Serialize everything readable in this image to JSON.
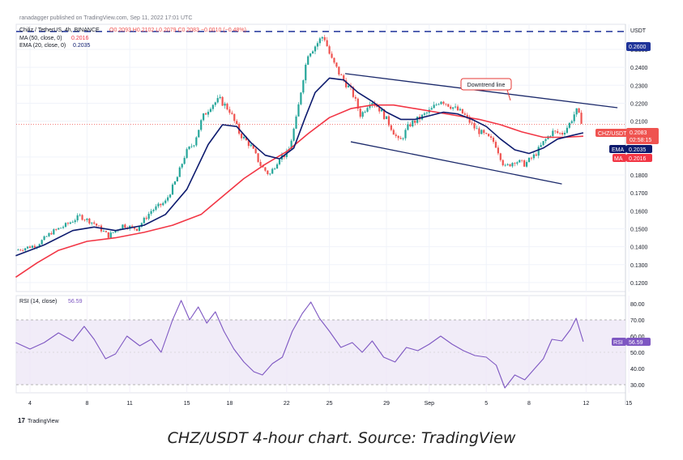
{
  "header": {
    "published": "ranadagger published on TradingView.com, Sep 11, 2022 17:01 UTC",
    "symbol_line": "Chiliz / TetherUS, 4h, BINANCE",
    "ohlc": "O0.2093 H0.2102 L0.2079 C0.2083 −0.0010 (−0.48%)",
    "ma_line_label": "MA (50, close, 0)",
    "ma_line_value": "0.2016",
    "ema_line_label": "EMA (20, close, 0)",
    "ema_line_value": "0.2035",
    "rsi_line_label": "RSI (14, close)",
    "rsi_line_value": "56.59"
  },
  "colors": {
    "up": "#26a69a",
    "down": "#ef5350",
    "ma": "#f23645",
    "ema": "#0d1b6e",
    "trend": "#1c2a6b",
    "rsi": "#7e57c2",
    "rsi_band": "#ede7f6"
  },
  "annotation": "Downtrend line",
  "badges": {
    "currency": "USDT",
    "resistance": "0.2600",
    "price_symbol": "CHZ/USDT",
    "price": "0.2083",
    "countdown": "02:58:15",
    "ema_tag": "EMA",
    "ema_value": "0.2035",
    "ma_tag": "MA",
    "ma_value": "0.2016",
    "rsi_tag": "RSI",
    "rsi_value": "56.59"
  },
  "logo_text": "TradingView",
  "caption": "CHZ/USDT 4-hour chart. Source: TradingView",
  "chart_data": {
    "type": "candlestick",
    "x_ticks": [
      {
        "label": "4",
        "day": 4
      },
      {
        "label": "8",
        "day": 8
      },
      {
        "label": "11",
        "day": 11
      },
      {
        "label": "15",
        "day": 15
      },
      {
        "label": "18",
        "day": 18
      },
      {
        "label": "22",
        "day": 22
      },
      {
        "label": "25",
        "day": 25
      },
      {
        "label": "29",
        "day": 29
      },
      {
        "label": "Sep",
        "day": 32
      },
      {
        "label": "5",
        "day": 36
      },
      {
        "label": "8",
        "day": 39
      },
      {
        "label": "12",
        "day": 43
      },
      {
        "label": "15",
        "day": 46
      }
    ],
    "price_ticks": [
      "0.2500",
      "0.2400",
      "0.2300",
      "0.2200",
      "0.2100",
      "0.1900",
      "0.1800",
      "0.1700",
      "0.1600",
      "0.1500",
      "0.1400",
      "0.1300",
      "0.1200"
    ],
    "ylim": [
      0.115,
      0.264
    ],
    "rsi_ticks": [
      "80.00",
      "70.00",
      "60.00",
      "50.00",
      "40.00",
      "30.00"
    ],
    "rsi_ylim": [
      25,
      85
    ],
    "rsi_band": [
      30,
      70
    ],
    "resistance_level": 0.26,
    "current_price": 0.2083,
    "downtrend_line": {
      "from": {
        "day": 26.1,
        "price": 0.2365
      },
      "to": {
        "day": 45.2,
        "price": 0.2175
      }
    },
    "channel_support": {
      "from": {
        "day": 26.5,
        "price": 0.1985
      },
      "to": {
        "day": 41.3,
        "price": 0.175
      }
    },
    "price_path": [
      {
        "day": 3.0,
        "price": 0.138
      },
      {
        "day": 4.5,
        "price": 0.141
      },
      {
        "day": 5.5,
        "price": 0.148
      },
      {
        "day": 6.5,
        "price": 0.152
      },
      {
        "day": 7.5,
        "price": 0.157
      },
      {
        "day": 8.5,
        "price": 0.153
      },
      {
        "day": 9.5,
        "price": 0.146
      },
      {
        "day": 10.5,
        "price": 0.152
      },
      {
        "day": 11.5,
        "price": 0.15
      },
      {
        "day": 12.5,
        "price": 0.16
      },
      {
        "day": 13.5,
        "price": 0.165
      },
      {
        "day": 14.3,
        "price": 0.178
      },
      {
        "day": 14.9,
        "price": 0.192
      },
      {
        "day": 15.5,
        "price": 0.198
      },
      {
        "day": 16.1,
        "price": 0.212
      },
      {
        "day": 16.7,
        "price": 0.219
      },
      {
        "day": 17.3,
        "price": 0.222
      },
      {
        "day": 18.0,
        "price": 0.216
      },
      {
        "day": 18.7,
        "price": 0.203
      },
      {
        "day": 19.5,
        "price": 0.196
      },
      {
        "day": 20.2,
        "price": 0.185
      },
      {
        "day": 20.8,
        "price": 0.18
      },
      {
        "day": 21.5,
        "price": 0.19
      },
      {
        "day": 22.1,
        "price": 0.192
      },
      {
        "day": 22.7,
        "price": 0.212
      },
      {
        "day": 23.1,
        "price": 0.232
      },
      {
        "day": 23.5,
        "price": 0.248
      },
      {
        "day": 24.0,
        "price": 0.252
      },
      {
        "day": 24.6,
        "price": 0.258
      },
      {
        "day": 25.1,
        "price": 0.245
      },
      {
        "day": 25.8,
        "price": 0.235
      },
      {
        "day": 26.6,
        "price": 0.226
      },
      {
        "day": 27.2,
        "price": 0.213
      },
      {
        "day": 27.9,
        "price": 0.222
      },
      {
        "day": 28.6,
        "price": 0.216
      },
      {
        "day": 29.3,
        "price": 0.207
      },
      {
        "day": 29.9,
        "price": 0.198
      },
      {
        "day": 30.6,
        "price": 0.208
      },
      {
        "day": 31.4,
        "price": 0.212
      },
      {
        "day": 32.1,
        "price": 0.216
      },
      {
        "day": 32.8,
        "price": 0.222
      },
      {
        "day": 33.6,
        "price": 0.218
      },
      {
        "day": 34.4,
        "price": 0.214
      },
      {
        "day": 35.2,
        "price": 0.206
      },
      {
        "day": 35.9,
        "price": 0.202
      },
      {
        "day": 36.6,
        "price": 0.198
      },
      {
        "day": 37.3,
        "price": 0.184
      },
      {
        "day": 38.0,
        "price": 0.188
      },
      {
        "day": 38.7,
        "price": 0.186
      },
      {
        "day": 39.4,
        "price": 0.191
      },
      {
        "day": 40.0,
        "price": 0.198
      },
      {
        "day": 40.6,
        "price": 0.204
      },
      {
        "day": 41.3,
        "price": 0.203
      },
      {
        "day": 41.8,
        "price": 0.208
      },
      {
        "day": 42.3,
        "price": 0.216
      },
      {
        "day": 42.8,
        "price": 0.2083
      }
    ],
    "ema_path": [
      {
        "day": 3.0,
        "price": 0.135
      },
      {
        "day": 5.0,
        "price": 0.141
      },
      {
        "day": 7.0,
        "price": 0.149
      },
      {
        "day": 8.5,
        "price": 0.151
      },
      {
        "day": 10.0,
        "price": 0.149
      },
      {
        "day": 12.0,
        "price": 0.152
      },
      {
        "day": 13.5,
        "price": 0.158
      },
      {
        "day": 15.0,
        "price": 0.172
      },
      {
        "day": 16.5,
        "price": 0.197
      },
      {
        "day": 17.5,
        "price": 0.208
      },
      {
        "day": 18.5,
        "price": 0.207
      },
      {
        "day": 19.5,
        "price": 0.198
      },
      {
        "day": 20.5,
        "price": 0.191
      },
      {
        "day": 21.5,
        "price": 0.189
      },
      {
        "day": 22.5,
        "price": 0.195
      },
      {
        "day": 23.3,
        "price": 0.212
      },
      {
        "day": 24.0,
        "price": 0.226
      },
      {
        "day": 25.0,
        "price": 0.234
      },
      {
        "day": 26.0,
        "price": 0.233
      },
      {
        "day": 27.0,
        "price": 0.226
      },
      {
        "day": 28.0,
        "price": 0.221
      },
      {
        "day": 29.0,
        "price": 0.215
      },
      {
        "day": 30.0,
        "price": 0.211
      },
      {
        "day": 31.0,
        "price": 0.211
      },
      {
        "day": 32.0,
        "price": 0.213
      },
      {
        "day": 33.0,
        "price": 0.215
      },
      {
        "day": 34.0,
        "price": 0.214
      },
      {
        "day": 35.0,
        "price": 0.211
      },
      {
        "day": 36.0,
        "price": 0.207
      },
      {
        "day": 37.0,
        "price": 0.2
      },
      {
        "day": 38.0,
        "price": 0.194
      },
      {
        "day": 39.0,
        "price": 0.192
      },
      {
        "day": 40.0,
        "price": 0.195
      },
      {
        "day": 41.0,
        "price": 0.2
      },
      {
        "day": 42.0,
        "price": 0.202
      },
      {
        "day": 42.8,
        "price": 0.2035
      }
    ],
    "ma_path": [
      {
        "day": 3.0,
        "price": 0.123
      },
      {
        "day": 4.5,
        "price": 0.131
      },
      {
        "day": 6.0,
        "price": 0.138
      },
      {
        "day": 8.0,
        "price": 0.143
      },
      {
        "day": 10.0,
        "price": 0.145
      },
      {
        "day": 12.0,
        "price": 0.148
      },
      {
        "day": 14.0,
        "price": 0.152
      },
      {
        "day": 16.0,
        "price": 0.158
      },
      {
        "day": 17.5,
        "price": 0.168
      },
      {
        "day": 19.0,
        "price": 0.178
      },
      {
        "day": 20.5,
        "price": 0.186
      },
      {
        "day": 22.0,
        "price": 0.193
      },
      {
        "day": 23.5,
        "price": 0.203
      },
      {
        "day": 25.0,
        "price": 0.212
      },
      {
        "day": 26.5,
        "price": 0.217
      },
      {
        "day": 28.0,
        "price": 0.219
      },
      {
        "day": 29.5,
        "price": 0.219
      },
      {
        "day": 31.0,
        "price": 0.217
      },
      {
        "day": 32.5,
        "price": 0.215
      },
      {
        "day": 34.0,
        "price": 0.213
      },
      {
        "day": 35.5,
        "price": 0.211
      },
      {
        "day": 37.0,
        "price": 0.208
      },
      {
        "day": 38.5,
        "price": 0.204
      },
      {
        "day": 40.0,
        "price": 0.201
      },
      {
        "day": 41.5,
        "price": 0.201
      },
      {
        "day": 42.8,
        "price": 0.2016
      }
    ],
    "rsi_path": [
      {
        "day": 3.0,
        "value": 56
      },
      {
        "day": 4.0,
        "value": 52
      },
      {
        "day": 5.0,
        "value": 56
      },
      {
        "day": 6.0,
        "value": 62
      },
      {
        "day": 7.0,
        "value": 57
      },
      {
        "day": 7.8,
        "value": 66
      },
      {
        "day": 8.5,
        "value": 58
      },
      {
        "day": 9.3,
        "value": 46
      },
      {
        "day": 10.0,
        "value": 49
      },
      {
        "day": 10.8,
        "value": 60
      },
      {
        "day": 11.7,
        "value": 54
      },
      {
        "day": 12.5,
        "value": 58
      },
      {
        "day": 13.2,
        "value": 50
      },
      {
        "day": 14.0,
        "value": 70
      },
      {
        "day": 14.6,
        "value": 82
      },
      {
        "day": 15.2,
        "value": 70
      },
      {
        "day": 15.8,
        "value": 78
      },
      {
        "day": 16.4,
        "value": 68
      },
      {
        "day": 17.0,
        "value": 75
      },
      {
        "day": 17.6,
        "value": 63
      },
      {
        "day": 18.3,
        "value": 52
      },
      {
        "day": 19.0,
        "value": 44
      },
      {
        "day": 19.7,
        "value": 38
      },
      {
        "day": 20.3,
        "value": 36
      },
      {
        "day": 21.0,
        "value": 43
      },
      {
        "day": 21.7,
        "value": 47
      },
      {
        "day": 22.4,
        "value": 63
      },
      {
        "day": 23.1,
        "value": 74
      },
      {
        "day": 23.7,
        "value": 81
      },
      {
        "day": 24.3,
        "value": 71
      },
      {
        "day": 25.0,
        "value": 63
      },
      {
        "day": 25.8,
        "value": 53
      },
      {
        "day": 26.6,
        "value": 56
      },
      {
        "day": 27.3,
        "value": 50
      },
      {
        "day": 28.0,
        "value": 57
      },
      {
        "day": 28.8,
        "value": 47
      },
      {
        "day": 29.6,
        "value": 44
      },
      {
        "day": 30.4,
        "value": 53
      },
      {
        "day": 31.2,
        "value": 51
      },
      {
        "day": 32.0,
        "value": 55
      },
      {
        "day": 32.8,
        "value": 60
      },
      {
        "day": 33.6,
        "value": 55
      },
      {
        "day": 34.4,
        "value": 51
      },
      {
        "day": 35.2,
        "value": 48
      },
      {
        "day": 36.0,
        "value": 47
      },
      {
        "day": 36.7,
        "value": 42
      },
      {
        "day": 37.3,
        "value": 28
      },
      {
        "day": 38.0,
        "value": 36
      },
      {
        "day": 38.7,
        "value": 33
      },
      {
        "day": 39.4,
        "value": 40
      },
      {
        "day": 40.0,
        "value": 46
      },
      {
        "day": 40.6,
        "value": 58
      },
      {
        "day": 41.3,
        "value": 57
      },
      {
        "day": 41.9,
        "value": 64
      },
      {
        "day": 42.3,
        "value": 71
      },
      {
        "day": 42.8,
        "value": 56.59
      }
    ]
  }
}
